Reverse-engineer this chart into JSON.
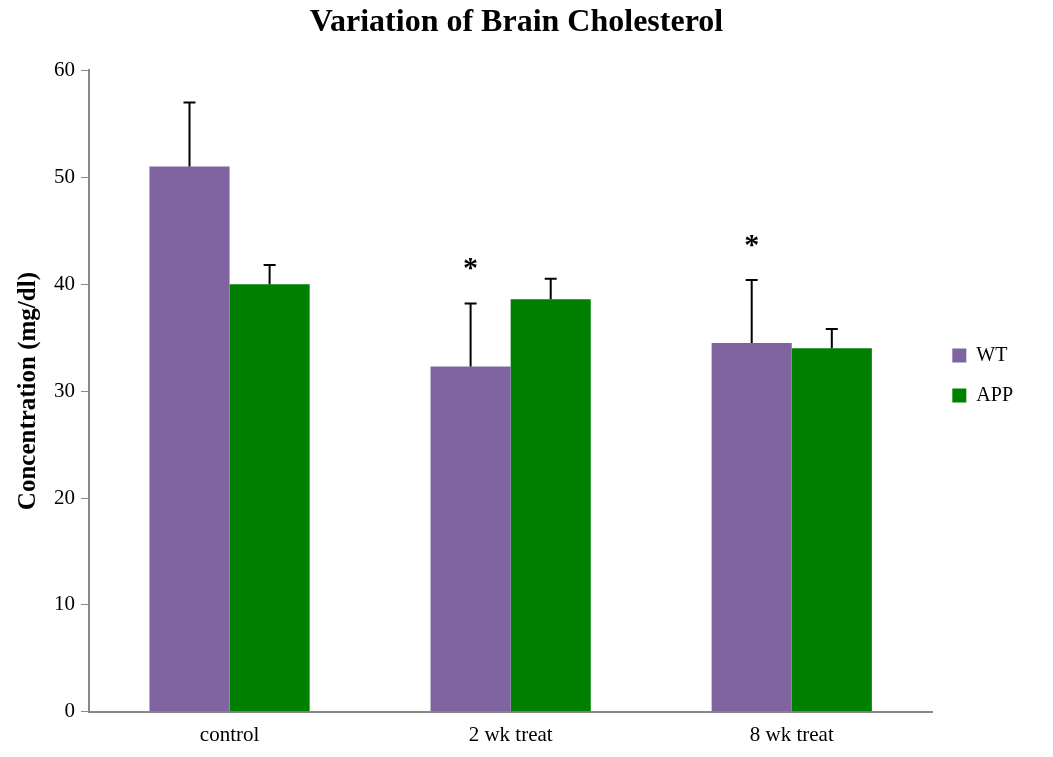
{
  "chart_data": {
    "type": "bar",
    "title": "Variation of Brain Cholesterol",
    "ylabel": "Concentration (mg/dl)",
    "categories": [
      "control",
      "2 wk treat",
      "8 wk treat"
    ],
    "series": [
      {
        "name": "WT",
        "color": "#8064a2",
        "values": [
          51,
          32.3,
          34.5
        ],
        "errors": [
          [
            51,
            57
          ],
          [
            32.3,
            38.2
          ],
          [
            34.5,
            40.4
          ]
        ]
      },
      {
        "name": "APP",
        "color": "#008000",
        "values": [
          40,
          38.6,
          34
        ],
        "errors": [
          [
            40,
            41.8
          ],
          [
            38.6,
            40.5
          ],
          [
            34,
            35.8
          ]
        ]
      }
    ],
    "ylim": [
      0,
      60
    ],
    "yticks": [
      0,
      10,
      20,
      30,
      40,
      50,
      60
    ],
    "grid": false,
    "legend": "right",
    "annotations": [
      "*",
      "*"
    ]
  }
}
